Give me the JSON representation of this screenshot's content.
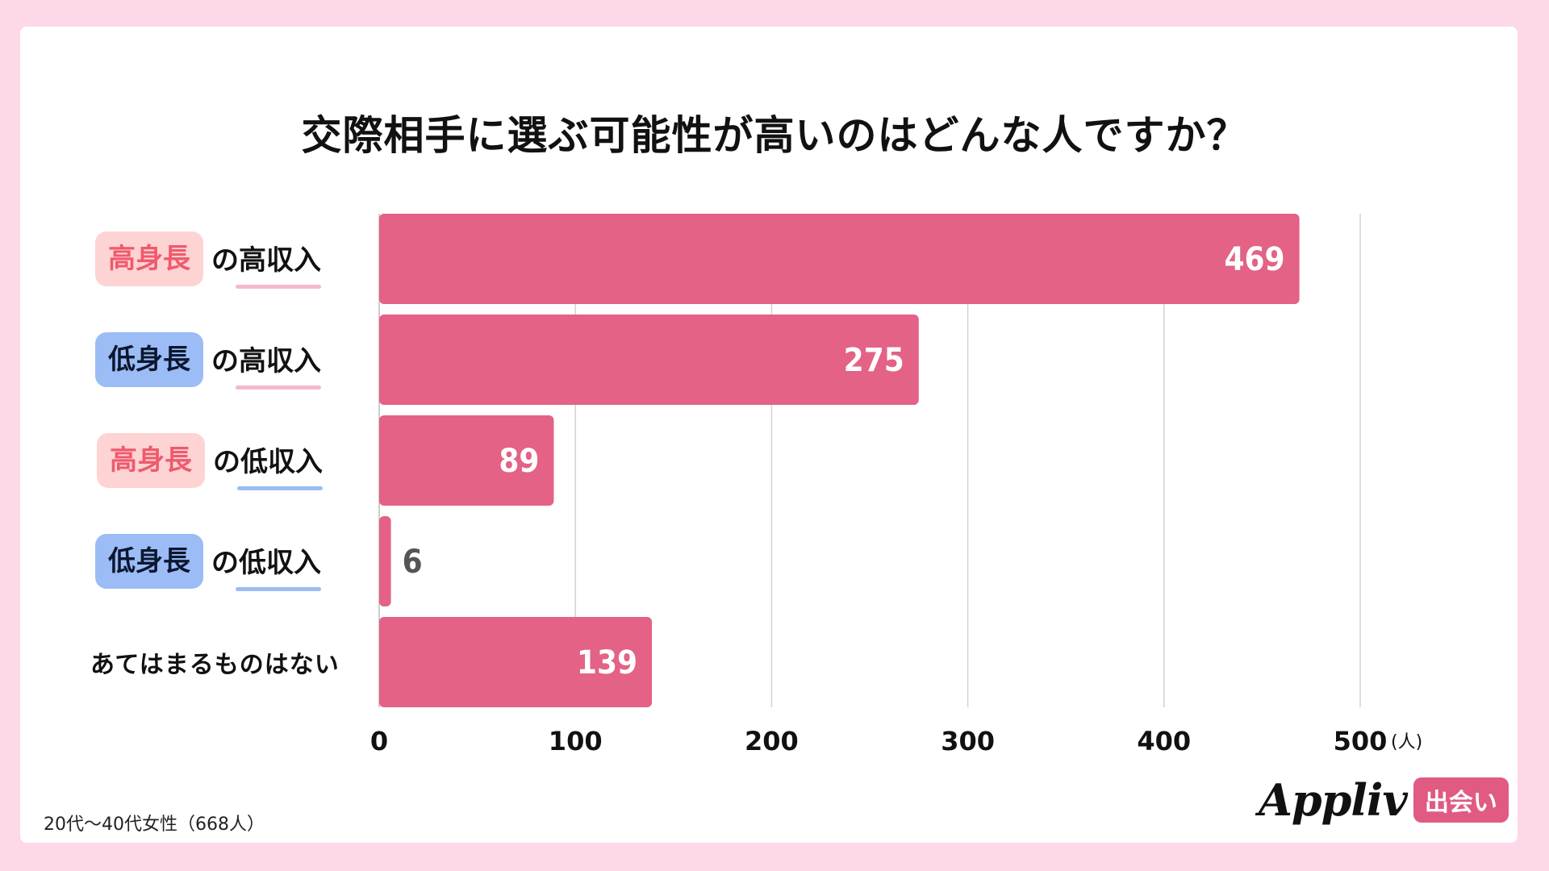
{
  "title": "交際相手に選ぶ可能性が高いのはどんな人ですか？",
  "categories": [
    {
      "pill": "高身長",
      "pill_type": "high",
      "suffix": "の高収入",
      "underline": "pink"
    },
    {
      "pill": "低身長",
      "pill_type": "low",
      "suffix": "の高収入",
      "underline": "pink"
    },
    {
      "pill": "高身長",
      "pill_type": "high",
      "suffix": "の低収入",
      "underline": "blue"
    },
    {
      "pill": "低身長",
      "pill_type": "low",
      "suffix": "の低収入",
      "underline": "blue"
    },
    {
      "plain": "あてはまるものはない"
    }
  ],
  "chart_data": {
    "type": "bar",
    "orientation": "horizontal",
    "categories": [
      "高身長の高収入",
      "低身長の高収入",
      "高身長の低収入",
      "低身長の低収入",
      "あてはまるものはない"
    ],
    "values": [
      469,
      275,
      89,
      6,
      139
    ],
    "xlim": [
      0,
      500
    ],
    "xticks": [
      0,
      100,
      200,
      300,
      400,
      500
    ],
    "xunit": "(人)",
    "bar_color": "#e36285",
    "grid": true
  },
  "footnote": "20代〜40代女性（668人）",
  "logo": {
    "word": "Appliv",
    "badge": "出会い"
  },
  "colors": {
    "background": "#fcd8e8",
    "high_pill": "#fdd3d3",
    "high_text": "#ef5a6d",
    "low_pill": "#9cbcf5"
  }
}
